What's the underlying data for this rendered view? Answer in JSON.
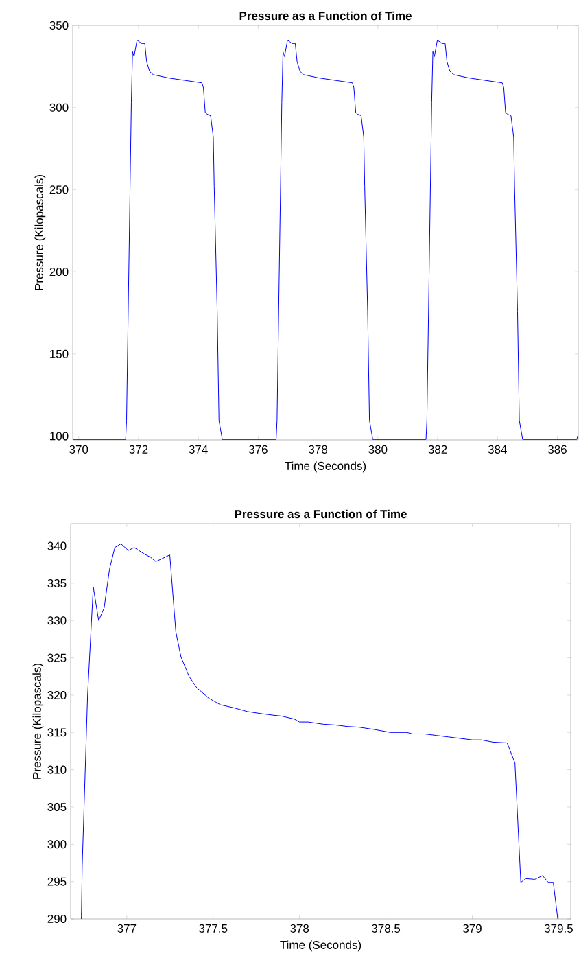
{
  "chart_data": [
    {
      "type": "line",
      "title": "Pressure as a Function of Time",
      "xlabel": "Time (Seconds)",
      "ylabel": "Pressure (Kilopascals)",
      "xlim": [
        369.8,
        386.7
      ],
      "ylim": [
        97.7,
        350
      ],
      "xticks": [
        370,
        372,
        374,
        376,
        378,
        380,
        382,
        384,
        386
      ],
      "yticks": [
        100,
        150,
        200,
        250,
        300,
        350
      ],
      "x": [
        369.8,
        371.57,
        371.6,
        371.76,
        371.8,
        371.85,
        371.95,
        372.03,
        372.1,
        372.21,
        372.27,
        372.37,
        372.49,
        373.0,
        374.12,
        374.17,
        374.23,
        374.29,
        374.41,
        374.5,
        374.53,
        374.63,
        374.69,
        374.8,
        376.6,
        376.63,
        376.79,
        376.83,
        376.88,
        376.98,
        377.06,
        377.13,
        377.24,
        377.3,
        377.4,
        377.52,
        378.03,
        379.15,
        379.2,
        379.26,
        379.32,
        379.44,
        379.53,
        379.56,
        379.66,
        379.72,
        379.83,
        381.61,
        381.64,
        381.8,
        381.84,
        381.89,
        381.99,
        382.07,
        382.14,
        382.25,
        382.31,
        382.41,
        382.53,
        383.04,
        384.16,
        384.21,
        384.27,
        384.33,
        384.45,
        384.54,
        384.57,
        384.67,
        384.73,
        384.84,
        386.65,
        386.69
      ],
      "series": [
        {
          "color": "#0000ff",
          "values": [
            98,
            98,
            109.5,
            303,
            334,
            331,
            341,
            340,
            339,
            339,
            328,
            322,
            320,
            318,
            315,
            312,
            297,
            296,
            295,
            282,
            252,
            176,
            109.5,
            98,
            98,
            109.5,
            303,
            334,
            331,
            341,
            340,
            339,
            339,
            328,
            322,
            320,
            318,
            315,
            312,
            297,
            296,
            295,
            282,
            252,
            176,
            109.5,
            98,
            98,
            109.5,
            303,
            334,
            331,
            341,
            340,
            339,
            339,
            328,
            322,
            320,
            318,
            315,
            312,
            297,
            296,
            295,
            282,
            252,
            176,
            109.5,
            98,
            98,
            100.5
          ]
        }
      ]
    },
    {
      "type": "line",
      "title": "Pressure as a Function of Time",
      "xlabel": "Time (Seconds)",
      "ylabel": "Pressure (Kilopascals)",
      "xlim": [
        376.675,
        379.57
      ],
      "ylim": [
        290,
        343
      ],
      "xticks": [
        377,
        377.5,
        378,
        378.5,
        379,
        379.5
      ],
      "yticks": [
        290,
        295,
        300,
        305,
        310,
        315,
        320,
        325,
        330,
        335,
        340
      ],
      "x": [
        376.737,
        376.742,
        376.773,
        376.806,
        376.837,
        376.869,
        376.9,
        376.931,
        376.966,
        377.009,
        377.043,
        377.103,
        377.137,
        377.168,
        377.249,
        377.284,
        377.314,
        377.361,
        377.405,
        377.474,
        377.543,
        377.62,
        377.698,
        377.784,
        377.852,
        377.895,
        377.969,
        378.0,
        378.05,
        378.138,
        378.207,
        378.276,
        378.345,
        378.431,
        378.526,
        378.621,
        378.655,
        378.724,
        378.793,
        378.862,
        378.931,
        379.0,
        379.052,
        379.121,
        379.202,
        379.247,
        379.281,
        379.31,
        379.362,
        379.407,
        379.44,
        379.469,
        379.495
      ],
      "series": [
        {
          "color": "#0000ff",
          "values": [
            290,
            297.2,
            320,
            334.5,
            330,
            331.7,
            336.9,
            339.8,
            340.3,
            339.4,
            339.8,
            338.9,
            338.5,
            337.9,
            338.8,
            328.5,
            325.1,
            322.5,
            321.0,
            319.6,
            318.7,
            318.3,
            317.8,
            317.5,
            317.3,
            317.2,
            316.8,
            316.4,
            316.4,
            316.1,
            316.0,
            315.8,
            315.7,
            315.4,
            315.0,
            315.0,
            314.8,
            314.8,
            314.6,
            314.4,
            314.2,
            314.0,
            314.0,
            313.7,
            313.6,
            310.9,
            294.9,
            295.4,
            295.3,
            295.8,
            294.9,
            294.9,
            290
          ]
        }
      ]
    }
  ]
}
